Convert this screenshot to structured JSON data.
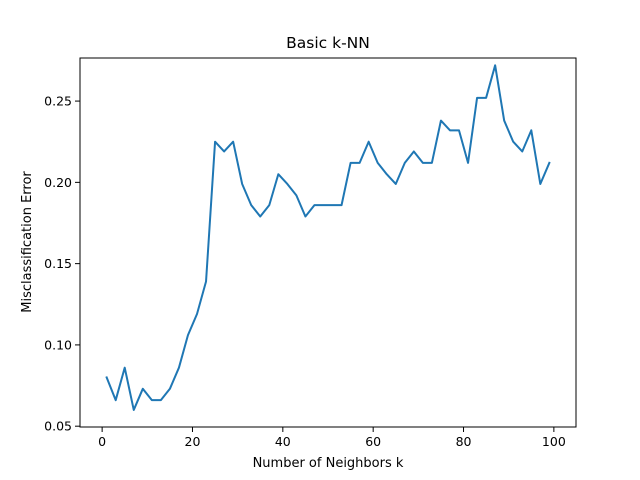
{
  "chart_data": {
    "type": "line",
    "title": "Basic k-NN",
    "xlabel": "Number of Neighbors k",
    "ylabel": "Misclassification Error",
    "xlim": [
      -4.9,
      104.9
    ],
    "ylim": [
      0.0495,
      0.2765
    ],
    "xticks": [
      0,
      20,
      40,
      60,
      80,
      100
    ],
    "yticks": [
      0.05,
      0.1,
      0.15,
      0.2,
      0.25
    ],
    "ytick_labels": [
      "0.05",
      "0.10",
      "0.15",
      "0.20",
      "0.25"
    ],
    "grid": false,
    "legend": "none",
    "series": [
      {
        "color": "#1f77b4",
        "x": [
          1,
          3,
          5,
          7,
          9,
          11,
          13,
          15,
          17,
          19,
          21,
          23,
          25,
          27,
          29,
          31,
          33,
          35,
          37,
          39,
          41,
          43,
          45,
          47,
          49,
          51,
          53,
          55,
          57,
          59,
          61,
          63,
          65,
          67,
          69,
          71,
          73,
          75,
          77,
          79,
          81,
          83,
          85,
          87,
          89,
          91,
          93,
          95,
          97,
          99
        ],
        "y": [
          0.08,
          0.066,
          0.086,
          0.06,
          0.073,
          0.066,
          0.066,
          0.073,
          0.086,
          0.106,
          0.119,
          0.139,
          0.225,
          0.219,
          0.225,
          0.199,
          0.186,
          0.179,
          0.186,
          0.205,
          0.199,
          0.192,
          0.179,
          0.186,
          0.186,
          0.186,
          0.186,
          0.212,
          0.212,
          0.225,
          0.212,
          0.205,
          0.199,
          0.212,
          0.219,
          0.212,
          0.212,
          0.238,
          0.232,
          0.232,
          0.212,
          0.252,
          0.252,
          0.272,
          0.238,
          0.225,
          0.219,
          0.232,
          0.199,
          0.212
        ]
      }
    ]
  }
}
